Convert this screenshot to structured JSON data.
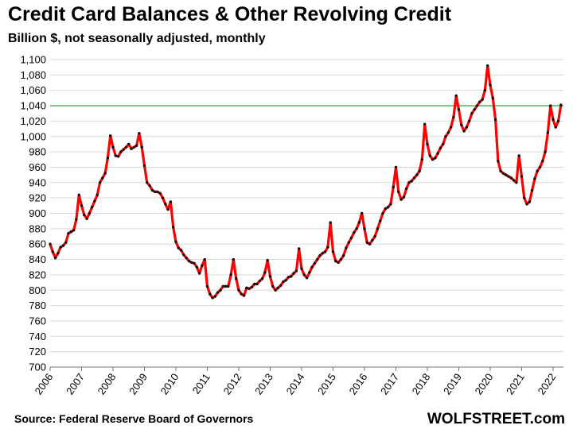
{
  "chart_data": {
    "type": "line",
    "title": "Credit Card Balances & Other Revolving Credit",
    "subtitle": "Billion $, not seasonally adjusted, monthly",
    "xlabel": "",
    "ylabel": "",
    "ylim": [
      700,
      1100
    ],
    "yticks": [
      "700",
      "720",
      "740",
      "760",
      "780",
      "800",
      "820",
      "840",
      "860",
      "880",
      "900",
      "920",
      "940",
      "960",
      "980",
      "1,000",
      "1,020",
      "1,040",
      "1,060",
      "1,080",
      "1,100"
    ],
    "xticks": [
      "2006",
      "2007",
      "2008",
      "2009",
      "2010",
      "2011",
      "2012",
      "2013",
      "2014",
      "2015",
      "2016",
      "2017",
      "2018",
      "2019",
      "2020",
      "2021",
      "2022"
    ],
    "grid": true,
    "reference_line": 1040,
    "colors": {
      "line": "#ff0000",
      "markers": "#111111",
      "reference": "#2db34a",
      "grid": "#d9d9d9"
    },
    "x": [
      2006.0,
      2006.083,
      2006.167,
      2006.25,
      2006.333,
      2006.417,
      2006.5,
      2006.583,
      2006.667,
      2006.75,
      2006.833,
      2006.917,
      2007.0,
      2007.083,
      2007.167,
      2007.25,
      2007.333,
      2007.417,
      2007.5,
      2007.583,
      2007.667,
      2007.75,
      2007.833,
      2007.917,
      2008.0,
      2008.083,
      2008.167,
      2008.25,
      2008.333,
      2008.417,
      2008.5,
      2008.583,
      2008.667,
      2008.75,
      2008.833,
      2008.917,
      2009.0,
      2009.083,
      2009.167,
      2009.25,
      2009.333,
      2009.417,
      2009.5,
      2009.583,
      2009.667,
      2009.75,
      2009.833,
      2009.917,
      2010.0,
      2010.083,
      2010.167,
      2010.25,
      2010.333,
      2010.417,
      2010.5,
      2010.583,
      2010.667,
      2010.75,
      2010.833,
      2010.917,
      2011.0,
      2011.083,
      2011.167,
      2011.25,
      2011.333,
      2011.417,
      2011.5,
      2011.583,
      2011.667,
      2011.75,
      2011.833,
      2011.917,
      2012.0,
      2012.083,
      2012.167,
      2012.25,
      2012.333,
      2012.417,
      2012.5,
      2012.583,
      2012.667,
      2012.75,
      2012.833,
      2012.917,
      2013.0,
      2013.083,
      2013.167,
      2013.25,
      2013.333,
      2013.417,
      2013.5,
      2013.583,
      2013.667,
      2013.75,
      2013.833,
      2013.917,
      2014.0,
      2014.083,
      2014.167,
      2014.25,
      2014.333,
      2014.417,
      2014.5,
      2014.583,
      2014.667,
      2014.75,
      2014.833,
      2014.917,
      2015.0,
      2015.083,
      2015.167,
      2015.25,
      2015.333,
      2015.417,
      2015.5,
      2015.583,
      2015.667,
      2015.75,
      2015.833,
      2015.917,
      2016.0,
      2016.083,
      2016.167,
      2016.25,
      2016.333,
      2016.417,
      2016.5,
      2016.583,
      2016.667,
      2016.75,
      2016.833,
      2016.917,
      2017.0,
      2017.083,
      2017.167,
      2017.25,
      2017.333,
      2017.417,
      2017.5,
      2017.583,
      2017.667,
      2017.75,
      2017.833,
      2017.917,
      2018.0,
      2018.083,
      2018.167,
      2018.25,
      2018.333,
      2018.417,
      2018.5,
      2018.583,
      2018.667,
      2018.75,
      2018.833,
      2018.917,
      2019.0,
      2019.083,
      2019.167,
      2019.25,
      2019.333,
      2019.417,
      2019.5,
      2019.583,
      2019.667,
      2019.75,
      2019.833,
      2019.917,
      2020.0,
      2020.083,
      2020.167,
      2020.25,
      2020.333,
      2020.417,
      2020.5,
      2020.583,
      2020.667,
      2020.75,
      2020.833,
      2020.917,
      2021.0,
      2021.083,
      2021.167,
      2021.25,
      2021.333,
      2021.417,
      2021.5,
      2021.583,
      2021.667,
      2021.75,
      2021.833,
      2021.917,
      2022.0,
      2022.083,
      2022.167,
      2022.25
    ],
    "series": [
      {
        "values": [
          860,
          850,
          842,
          848,
          856,
          858,
          862,
          874,
          876,
          878,
          892,
          924,
          910,
          898,
          893,
          900,
          908,
          916,
          924,
          940,
          946,
          952,
          972,
          1001,
          986,
          975,
          974,
          980,
          983,
          986,
          990,
          984,
          986,
          988,
          1004,
          986,
          962,
          940,
          936,
          930,
          928,
          928,
          926,
          920,
          912,
          905,
          915,
          882,
          863,
          855,
          852,
          846,
          842,
          838,
          836,
          835,
          830,
          822,
          832,
          840,
          805,
          795,
          790,
          792,
          797,
          800,
          805,
          805,
          805,
          820,
          840,
          815,
          800,
          795,
          793,
          803,
          802,
          804,
          808,
          808,
          812,
          815,
          823,
          839,
          818,
          805,
          800,
          803,
          806,
          811,
          813,
          817,
          818,
          822,
          825,
          854,
          828,
          820,
          816,
          823,
          830,
          835,
          840,
          845,
          848,
          850,
          856,
          888,
          850,
          838,
          836,
          840,
          845,
          855,
          862,
          868,
          875,
          880,
          888,
          900,
          880,
          862,
          860,
          865,
          870,
          880,
          890,
          900,
          906,
          908,
          912,
          934,
          960,
          928,
          918,
          921,
          932,
          940,
          942,
          946,
          950,
          955,
          970,
          1016,
          990,
          975,
          970,
          972,
          978,
          985,
          990,
          1000,
          1005,
          1012,
          1025,
          1053,
          1035,
          1015,
          1007,
          1012,
          1020,
          1030,
          1035,
          1040,
          1045,
          1048,
          1060,
          1092,
          1067,
          1050,
          1022,
          968,
          955,
          952,
          950,
          948,
          946,
          943,
          940,
          975,
          948,
          920,
          912,
          915,
          930,
          945,
          955,
          960,
          968,
          980,
          1005,
          1040,
          1022,
          1012,
          1020,
          1041
        ]
      }
    ]
  },
  "footer": {
    "source": "Source: Federal Reserve Board of Governors",
    "brand": "WOLFSTREET.com"
  }
}
